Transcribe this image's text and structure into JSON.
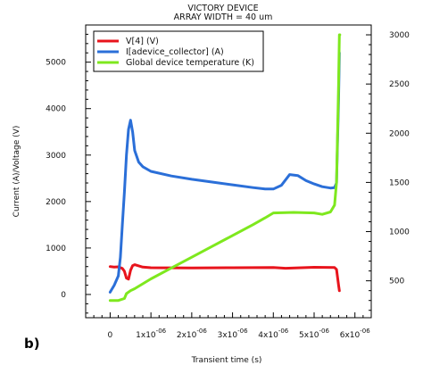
{
  "chart_data": {
    "type": "line",
    "title": "VICTORY DEVICE",
    "subtitle": "ARRAY WIDTH = 40 um",
    "panel_label": "b)",
    "xlabel": "Transient time (s)",
    "ylabel": "Current (A)/Voltage (V)",
    "xlim": [
      -6e-07,
      6.4e-06
    ],
    "ylim_left": [
      -500,
      5800
    ],
    "ylim_right": [
      125,
      3100
    ],
    "x_ticks": [
      {
        "value": 0,
        "label": "0"
      },
      {
        "value": 1e-06,
        "label": "1x10",
        "exp": "-06"
      },
      {
        "value": 2e-06,
        "label": "2x10",
        "exp": "-06"
      },
      {
        "value": 3e-06,
        "label": "3x10",
        "exp": "-06"
      },
      {
        "value": 4e-06,
        "label": "4x10",
        "exp": "-06"
      },
      {
        "value": 5e-06,
        "label": "5x10",
        "exp": "-06"
      },
      {
        "value": 6e-06,
        "label": "6x10",
        "exp": "-06"
      }
    ],
    "y_ticks_left": [
      {
        "value": 0,
        "label": "0"
      },
      {
        "value": 1000,
        "label": "1000"
      },
      {
        "value": 2000,
        "label": "2000"
      },
      {
        "value": 3000,
        "label": "3000"
      },
      {
        "value": 4000,
        "label": "4000"
      },
      {
        "value": 5000,
        "label": "5000"
      }
    ],
    "y_ticks_right": [
      {
        "value": 500,
        "label": "500"
      },
      {
        "value": 1000,
        "label": "1000"
      },
      {
        "value": 1500,
        "label": "1500"
      },
      {
        "value": 2000,
        "label": "2000"
      },
      {
        "value": 2500,
        "label": "2500"
      },
      {
        "value": 3000,
        "label": "3000"
      }
    ],
    "legend_position": "top-left",
    "series": [
      {
        "name": "V[4] (V)",
        "color": "#e8141c",
        "axis": "left",
        "x": [
          0,
          1e-07,
          2e-07,
          3e-07,
          3.5e-07,
          4e-07,
          4.5e-07,
          5e-07,
          5.5e-07,
          6e-07,
          8e-07,
          1e-06,
          2e-06,
          3e-06,
          4e-06,
          4.3e-06,
          5e-06,
          5.5e-06,
          5.55e-06,
          5.6e-06,
          5.62e-06
        ],
        "y": [
          600,
          590,
          595,
          560,
          500,
          350,
          330,
          520,
          620,
          640,
          590,
          575,
          570,
          575,
          580,
          565,
          585,
          580,
          540,
          200,
          80
        ]
      },
      {
        "name": "I[adevice_collector] (A)",
        "color": "#2b6fd8",
        "axis": "left",
        "x": [
          0,
          1e-07,
          2e-07,
          2.5e-07,
          3e-07,
          3.5e-07,
          4e-07,
          4.5e-07,
          5e-07,
          5.5e-07,
          6e-07,
          7e-07,
          8e-07,
          1e-06,
          1.5e-06,
          2e-06,
          2.5e-06,
          3e-06,
          3.5e-06,
          3.8e-06,
          4e-06,
          4.2e-06,
          4.4e-06,
          4.6e-06,
          4.8e-06,
          5e-06,
          5.2e-06,
          5.4e-06,
          5.5e-06,
          5.55e-06,
          5.6e-06,
          5.62e-06
        ],
        "y": [
          50,
          200,
          400,
          800,
          1500,
          2200,
          3000,
          3550,
          3750,
          3500,
          3100,
          2850,
          2750,
          2650,
          2550,
          2480,
          2420,
          2360,
          2300,
          2270,
          2270,
          2350,
          2580,
          2560,
          2450,
          2380,
          2320,
          2290,
          2300,
          2400,
          4200,
          5200
        ]
      },
      {
        "name": "Global device temperature (K)",
        "color": "#7ee81e",
        "axis": "right",
        "x": [
          0,
          2e-07,
          3.5e-07,
          4e-07,
          5e-07,
          6e-07,
          1e-06,
          1.5e-06,
          2e-06,
          2.5e-06,
          3e-06,
          3.5e-06,
          3.8e-06,
          4e-06,
          4.5e-06,
          5e-06,
          5.2e-06,
          5.4e-06,
          5.5e-06,
          5.55e-06,
          5.6e-06,
          5.62e-06,
          5.63e-06
        ],
        "y": [
          300,
          300,
          320,
          370,
          400,
          420,
          520,
          630,
          740,
          850,
          960,
          1070,
          1140,
          1190,
          1195,
          1190,
          1175,
          1200,
          1270,
          1500,
          2500,
          3000,
          3000
        ]
      }
    ]
  }
}
